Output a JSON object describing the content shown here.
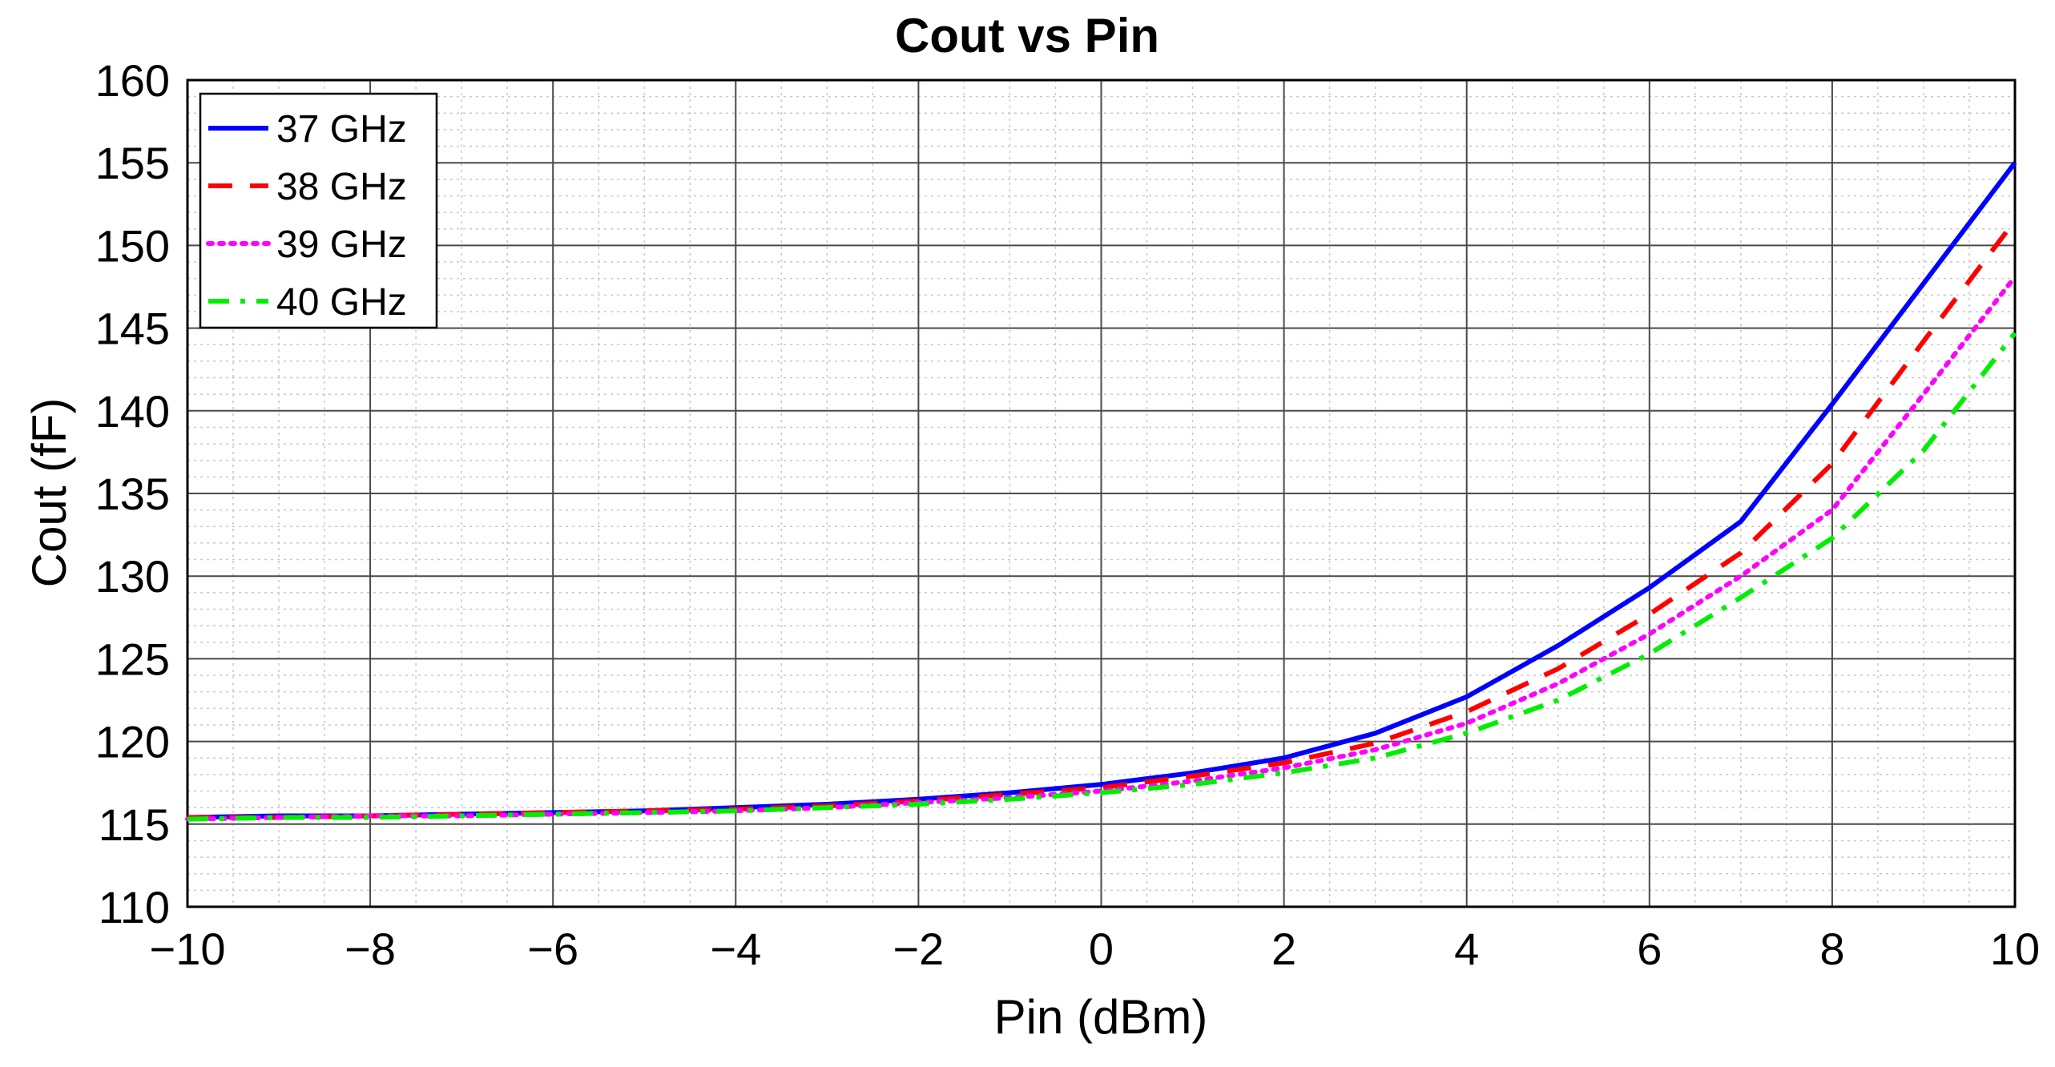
{
  "chart_data": {
    "type": "line",
    "title": "Cout vs Pin",
    "xlabel": "Pin (dBm)",
    "ylabel": "Cout (fF)",
    "xlim": [
      -10,
      10
    ],
    "ylim": [
      110,
      160
    ],
    "xticks": [
      -10,
      -8,
      -6,
      -4,
      -2,
      0,
      2,
      4,
      6,
      8,
      10
    ],
    "xtick_labels": [
      "−10",
      "−8",
      "−6",
      "−4",
      "−2",
      "0",
      "2",
      "4",
      "6",
      "8",
      "10"
    ],
    "yticks": [
      110,
      115,
      120,
      125,
      130,
      135,
      140,
      145,
      150,
      155,
      160
    ],
    "ytick_labels": [
      "110",
      "115",
      "120",
      "125",
      "130",
      "135",
      "140",
      "145",
      "150",
      "155",
      "160"
    ],
    "grid": true,
    "minor_grid": true,
    "legend_position": "top-left",
    "x": [
      -10,
      -9,
      -8,
      -7,
      -6,
      -5,
      -4,
      -3,
      -2,
      -1,
      0,
      1,
      2,
      3,
      4,
      5,
      6,
      7,
      8,
      9,
      10
    ],
    "series": [
      {
        "name": "37 GHz",
        "color": "#0000ff",
        "style": "solid",
        "values": [
          115.4,
          115.5,
          115.5,
          115.6,
          115.7,
          115.8,
          116.0,
          116.2,
          116.5,
          116.9,
          117.4,
          118.1,
          119.0,
          120.5,
          122.7,
          125.8,
          129.3,
          133.3,
          140.4,
          147.7,
          155.0
        ]
      },
      {
        "name": "38 GHz",
        "color": "#ff0000",
        "style": "dashed",
        "values": [
          115.4,
          115.4,
          115.5,
          115.6,
          115.7,
          115.8,
          115.9,
          116.1,
          116.4,
          116.8,
          117.2,
          117.9,
          118.7,
          119.9,
          121.8,
          124.4,
          127.7,
          131.4,
          136.8,
          144.2,
          151.5
        ]
      },
      {
        "name": "39 GHz",
        "color": "#ff00ff",
        "style": "dotted",
        "values": [
          115.3,
          115.4,
          115.5,
          115.5,
          115.6,
          115.7,
          115.8,
          116.0,
          116.3,
          116.6,
          117.0,
          117.6,
          118.4,
          119.5,
          121.1,
          123.5,
          126.5,
          130.0,
          134.0,
          141.0,
          148.1
        ]
      },
      {
        "name": "40 GHz",
        "color": "#00ee00",
        "style": "dashdot",
        "values": [
          115.3,
          115.4,
          115.4,
          115.5,
          115.6,
          115.7,
          115.8,
          116.0,
          116.2,
          116.5,
          116.9,
          117.4,
          118.1,
          119.0,
          120.5,
          122.5,
          125.3,
          128.7,
          132.3,
          137.6,
          144.7
        ]
      }
    ]
  }
}
